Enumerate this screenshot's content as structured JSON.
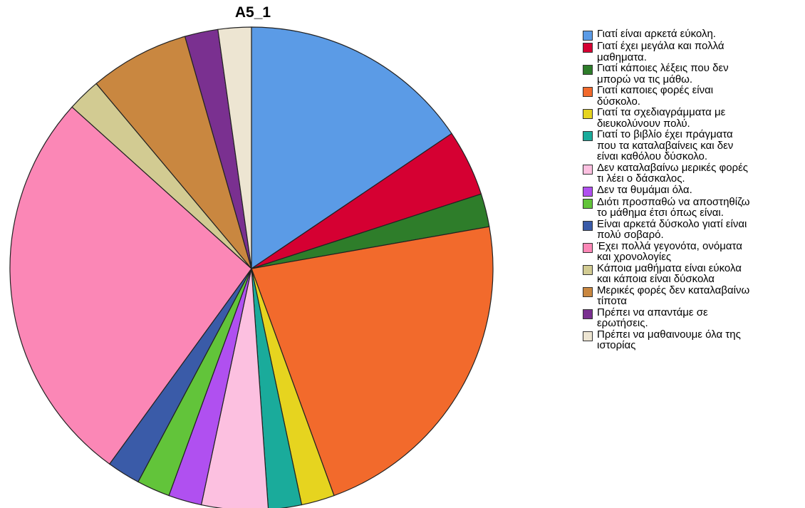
{
  "chart_data": {
    "type": "pie",
    "title": "A5_1",
    "legend_position": "right",
    "slices": [
      {
        "label": "Γιατί είναι αρκετά εύκολη.",
        "value": 7,
        "color": "#5b9be6"
      },
      {
        "label": "Γιατί έχει μεγάλα και πολλά\nμαθηματα.",
        "value": 2,
        "color": "#d50032"
      },
      {
        "label": "Γιατί κάποιες λέξεις που δεν\nμπορώ να τις μάθω.",
        "value": 1,
        "color": "#2e7d2a"
      },
      {
        "label": "Γιατί καποιες φορές είναι\nδύσκολο.",
        "value": 10,
        "color": "#f26a2c"
      },
      {
        "label": "Γιατί τα σχεδιαγράμματα με\nδιευκολύνουν πολύ.",
        "value": 1,
        "color": "#e6d41f"
      },
      {
        "label": "Γιατί το βιβλίο έχει πράγματα\nπου τα καταλαβαίνεις και δεν\nείναι καθόλου δύσκολο.",
        "value": 1,
        "color": "#1aab9b"
      },
      {
        "label": "Δεν καταλαβαίνω μερικές φορές\nτι λέει ο δάσκαλος.",
        "value": 2,
        "color": "#fcc0e0"
      },
      {
        "label": "Δεν τα θυμάμαι όλα.",
        "value": 1,
        "color": "#b050f0"
      },
      {
        "label": "Διότι προσπαθώ να αποστηθίζω\nτο μάθημα έτσι όπως είναι.",
        "value": 1,
        "color": "#62c43a"
      },
      {
        "label": "Είναι αρκετά δύσκολο γιατί είναι\nπολύ σοβαρό.",
        "value": 1,
        "color": "#3a5ba8"
      },
      {
        "label": "Έχει πολλά γεγονότα, ονόματα\nκαι χρονολογίες",
        "value": 12,
        "color": "#fb87b6"
      },
      {
        "label": "Κάποια μαθήματα είναι εύκολα\nκαι κάποια είναι δύσκολα",
        "value": 1,
        "color": "#d2cb92"
      },
      {
        "label": "Μερικές φορές δεν καταλαβαίνω\nτίποτα",
        "value": 3,
        "color": "#c98740"
      },
      {
        "label": "Πρέπει να απαντάμε σε\nερωτήσεις.",
        "value": 1,
        "color": "#7a3090"
      },
      {
        "label": "Πρέπει να μαθαινουμε όλα της\nιστορίας",
        "value": 1,
        "color": "#ede5d2"
      }
    ]
  }
}
